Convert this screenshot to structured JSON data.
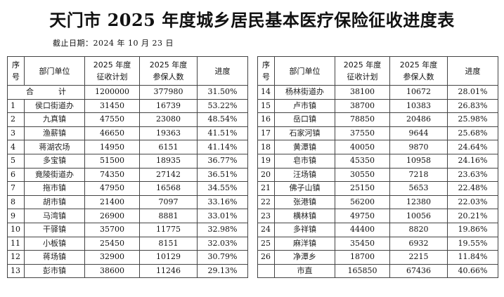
{
  "title": "天门市 2025 年度城乡居民基本医疗保险征收进度表",
  "date": "截止日期：2024 年 10 月 23 日",
  "headers": {
    "no": [
      "序",
      "号"
    ],
    "dept": "部门单位",
    "plan": [
      "2025 年度",
      "征收计划"
    ],
    "insured": [
      "2025 年度",
      "参保人数"
    ],
    "progress": "进度"
  },
  "left": {
    "total": {
      "label": "合　计",
      "plan": "1200000",
      "insured": "377980",
      "progress": "31.50%"
    },
    "rows": [
      {
        "no": "1",
        "name": "侯口街道办",
        "plan": "31450",
        "insured": "16739",
        "progress": "53.22%"
      },
      {
        "no": "2",
        "name": "九真镇",
        "plan": "47550",
        "insured": "23080",
        "progress": "48.54%"
      },
      {
        "no": "3",
        "name": "渔薪镇",
        "plan": "46650",
        "insured": "19363",
        "progress": "41.51%"
      },
      {
        "no": "4",
        "name": "蒋湖农场",
        "plan": "14950",
        "insured": "6151",
        "progress": "41.14%"
      },
      {
        "no": "5",
        "name": "多宝镇",
        "plan": "51500",
        "insured": "18935",
        "progress": "36.77%"
      },
      {
        "no": "6",
        "name": "竟陵街道办",
        "plan": "74350",
        "insured": "27142",
        "progress": "36.51%"
      },
      {
        "no": "7",
        "name": "拖市镇",
        "plan": "47950",
        "insured": "16568",
        "progress": "34.55%"
      },
      {
        "no": "8",
        "name": "胡市镇",
        "plan": "21400",
        "insured": "7097",
        "progress": "33.16%"
      },
      {
        "no": "9",
        "name": "马湾镇",
        "plan": "26900",
        "insured": "8881",
        "progress": "33.01%"
      },
      {
        "no": "10",
        "name": "干驿镇",
        "plan": "35700",
        "insured": "11775",
        "progress": "32.98%"
      },
      {
        "no": "11",
        "name": "小板镇",
        "plan": "25450",
        "insured": "8151",
        "progress": "32.03%"
      },
      {
        "no": "12",
        "name": "蒋场镇",
        "plan": "32900",
        "insured": "10129",
        "progress": "30.79%"
      },
      {
        "no": "13",
        "name": "彭市镇",
        "plan": "38600",
        "insured": "11246",
        "progress": "29.13%"
      }
    ]
  },
  "right": {
    "rows": [
      {
        "no": "14",
        "name": "杨林街道办",
        "plan": "38100",
        "insured": "10672",
        "progress": "28.01%"
      },
      {
        "no": "15",
        "name": "卢市镇",
        "plan": "38700",
        "insured": "10383",
        "progress": "26.83%"
      },
      {
        "no": "16",
        "name": "岳口镇",
        "plan": "78850",
        "insured": "20486",
        "progress": "25.98%"
      },
      {
        "no": "17",
        "name": "石家河镇",
        "plan": "37550",
        "insured": "9644",
        "progress": "25.68%"
      },
      {
        "no": "18",
        "name": "黄潭镇",
        "plan": "40050",
        "insured": "9870",
        "progress": "24.64%"
      },
      {
        "no": "19",
        "name": "皂市镇",
        "plan": "45350",
        "insured": "10958",
        "progress": "24.16%"
      },
      {
        "no": "20",
        "name": "汪场镇",
        "plan": "30550",
        "insured": "7218",
        "progress": "23.63%"
      },
      {
        "no": "21",
        "name": "佛子山镇",
        "plan": "25150",
        "insured": "5653",
        "progress": "22.48%"
      },
      {
        "no": "22",
        "name": "张港镇",
        "plan": "56200",
        "insured": "12380",
        "progress": "22.03%"
      },
      {
        "no": "23",
        "name": "横林镇",
        "plan": "49750",
        "insured": "10056",
        "progress": "20.21%"
      },
      {
        "no": "24",
        "name": "多祥镇",
        "plan": "44400",
        "insured": "8820",
        "progress": "19.86%"
      },
      {
        "no": "25",
        "name": "麻洋镇",
        "plan": "35450",
        "insured": "6932",
        "progress": "19.55%"
      },
      {
        "no": "26",
        "name": "净潭乡",
        "plan": "18700",
        "insured": "2215",
        "progress": "11.84%"
      },
      {
        "no": "",
        "name": "市直",
        "plan": "165850",
        "insured": "67436",
        "progress": "40.66%"
      }
    ]
  }
}
